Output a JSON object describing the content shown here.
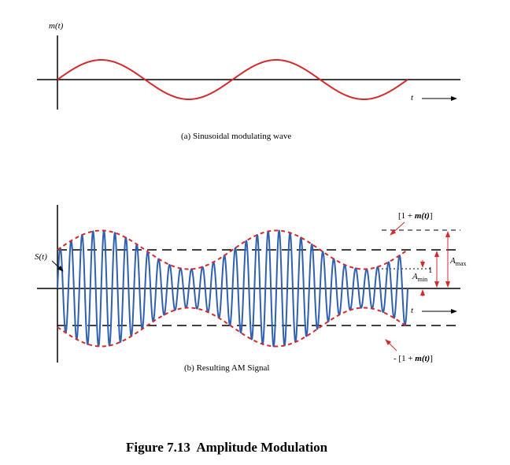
{
  "panel_a": {
    "y_label": "m(t)",
    "t_label": "t",
    "caption": "(a) Sinusoidal modulating wave"
  },
  "panel_b": {
    "s_label": "S(t)",
    "t_label": "t",
    "upper_env_label": "[1 + m(t)]",
    "lower_env_label": "- [1 + m(t)]",
    "a_max_label": "A",
    "a_max_sub": "max",
    "a_min_label": "A",
    "a_min_sub": "min",
    "one_label": "1",
    "caption": "(b) Resulting AM Signal"
  },
  "figure_title": "Figure 7.13  Amplitude Modulation",
  "colors": {
    "modulating": "#d42a2a",
    "carrier": "#3060b0",
    "envelope": "#d42a2a",
    "axis": "#000000",
    "annotation": "#d42a2a"
  },
  "signal": {
    "modulating_cycles": 2,
    "carrier_cycles": 32,
    "modulation_index": 0.5
  }
}
